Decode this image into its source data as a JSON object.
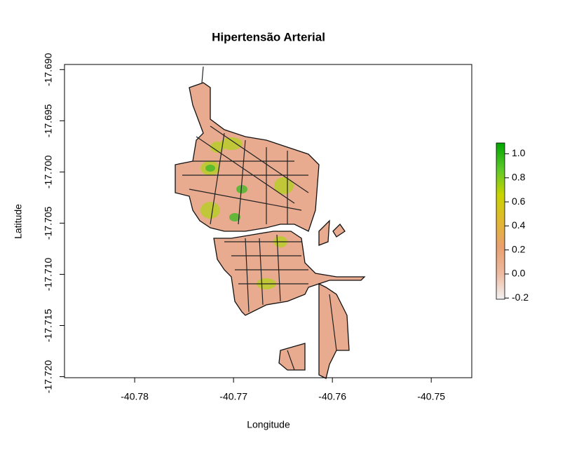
{
  "chart_data": {
    "type": "map",
    "title": "Hipertensão Arterial",
    "xlabel": "Longitude",
    "ylabel": "Latitude",
    "xlim": [
      -40.7871,
      -40.7459
    ],
    "xticks": [
      -40.78,
      -40.77,
      -40.76,
      -40.75
    ],
    "ylim": [
      -17.7201,
      -17.6895
    ],
    "yticks": [
      {
        "value": -17.69,
        "label": "-17.690"
      },
      {
        "value": -17.695,
        "label": "-17.695"
      },
      {
        "value": -17.7,
        "label": "-17.700"
      },
      {
        "value": -17.705,
        "label": "-17.705"
      },
      {
        "value": -17.71,
        "label": "-17.710"
      },
      {
        "value": -17.715,
        "label": "-17.715"
      },
      {
        "value": -17.72,
        "label": "-17.720"
      }
    ],
    "colorbar": {
      "lim": [
        -0.21,
        1.09
      ],
      "ticks": [
        {
          "value": 1,
          "label": "1.0"
        },
        0.8,
        0.6,
        0.4,
        0.2,
        {
          "value": 0,
          "label": "0.0"
        },
        -0.2
      ],
      "colors": [
        "#f2f2f2",
        "#eeb99f",
        "#e8a070",
        "#e2b830",
        "#c8d400",
        "#5cc82a",
        "#00a600"
      ]
    }
  }
}
